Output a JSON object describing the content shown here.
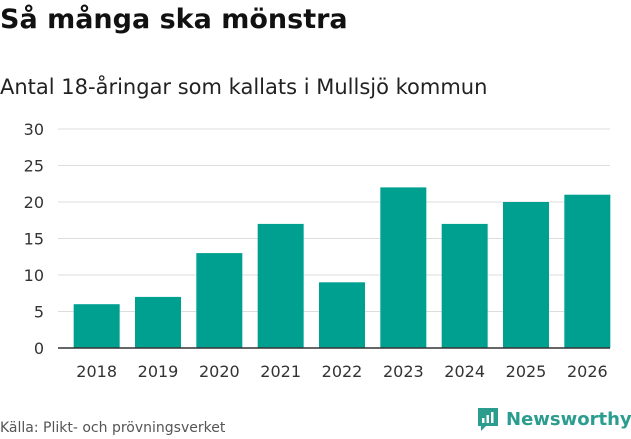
{
  "header": {
    "title": "Så många ska mönstra",
    "subtitle": "Antal 18-åringar som kallats i Mullsjö kommun"
  },
  "footer": {
    "source": "Källa: Plikt- och prövningsverket",
    "brand": "Newsworthy"
  },
  "colors": {
    "bar": "#00a090",
    "grid": "#dddddd",
    "axis": "#333333",
    "brand": "#2a9d8f"
  },
  "chart_data": {
    "type": "bar",
    "title": "Så många ska mönstra",
    "subtitle": "Antal 18-åringar som kallats i Mullsjö kommun",
    "categories": [
      "2018",
      "2019",
      "2020",
      "2021",
      "2022",
      "2023",
      "2024",
      "2025",
      "2026"
    ],
    "values": [
      6,
      7,
      13,
      17,
      9,
      22,
      17,
      20,
      21
    ],
    "ylim": [
      0,
      30
    ],
    "yticks": [
      0,
      5,
      10,
      15,
      20,
      25,
      30
    ],
    "xlabel": "",
    "ylabel": "",
    "grid": true
  }
}
